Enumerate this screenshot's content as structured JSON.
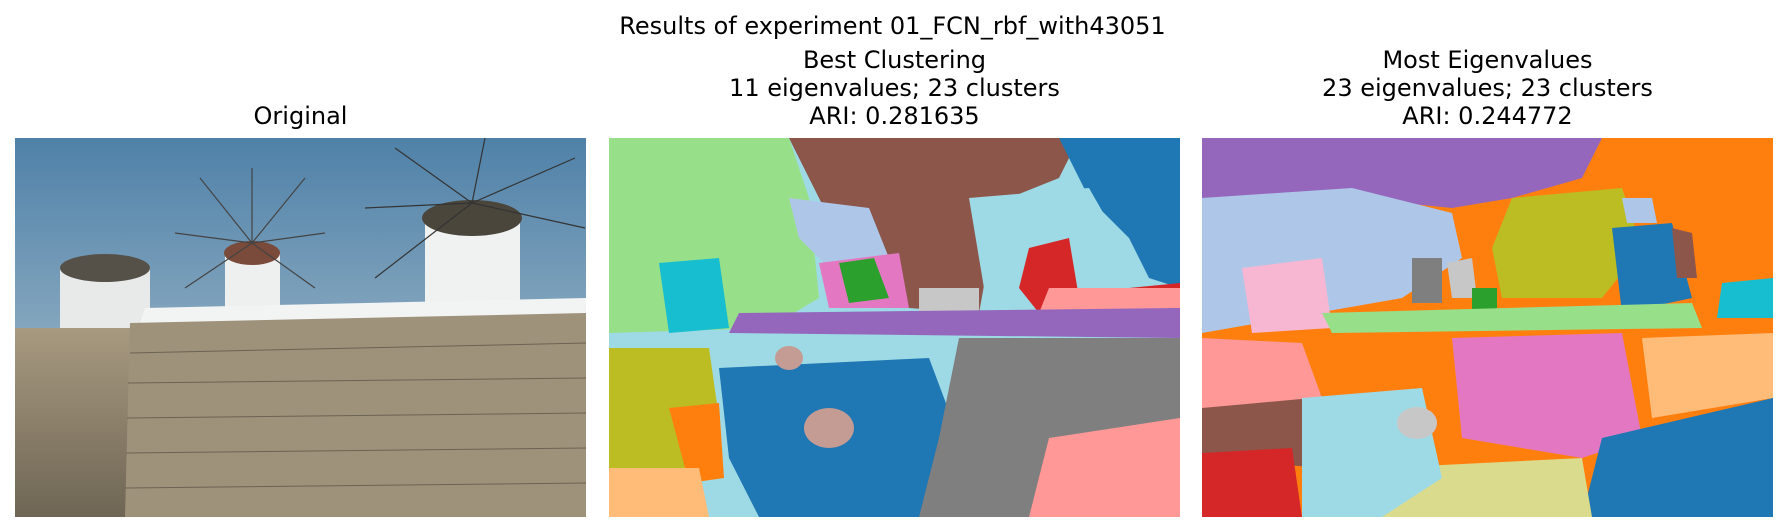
{
  "figure": {
    "suptitle": "Results of experiment 01_FCN_rbf_with43051"
  },
  "panels": [
    {
      "lines": [
        "Original"
      ]
    },
    {
      "lines": [
        "Best Clustering",
        "11 eigenvalues; 23 clusters",
        "ARI: 0.281635"
      ]
    },
    {
      "lines": [
        "Most Eigenvalues",
        "23 eigenvalues; 23 clusters",
        "ARI: 0.244772"
      ]
    }
  ],
  "colors": {
    "sky": "#5b8fb8",
    "stone": "#9a8c73",
    "tab_blue": "#1f77b4",
    "tab_lightblue": "#aec7e8",
    "tab_orange": "#ff7f0e",
    "tab_lightorange": "#ffbb78",
    "tab_green": "#2ca02c",
    "tab_lightgreen": "#98df8a",
    "tab_red": "#d62728",
    "tab_pink": "#ff9896",
    "tab_purple": "#9467bd",
    "tab_lightpurple": "#c5b0d5",
    "tab_brown": "#8c564b",
    "tab_lightbrown": "#c49c94",
    "tab_magenta": "#e377c2",
    "tab_gray": "#7f7f7f",
    "tab_lightgray": "#c7c7c7",
    "tab_olive": "#bcbd22",
    "tab_khaki": "#dbdb8d",
    "tab_cyan": "#17becf",
    "tab_lightcyan": "#9edae5"
  }
}
